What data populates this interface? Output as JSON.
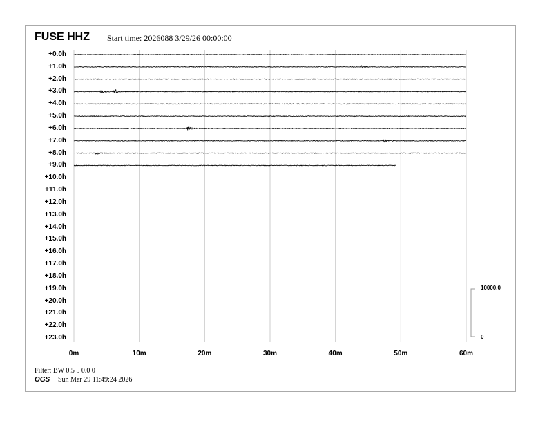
{
  "header": {
    "station": "FUSE HHZ",
    "start_time": "Start time: 2026088  3/29/26 00:00:00"
  },
  "footer": {
    "filter": "Filter: BW 0.5 5 0.0 0",
    "org": "OGS",
    "generated": "Sun Mar 29 11:49:24 2026"
  },
  "chart_data": {
    "type": "line",
    "kind": "helicorder",
    "row_labels": [
      "+0.0h",
      "+1.0h",
      "+2.0h",
      "+3.0h",
      "+4.0h",
      "+5.0h",
      "+6.0h",
      "+7.0h",
      "+8.0h",
      "+9.0h",
      "+10.0h",
      "+11.0h",
      "+12.0h",
      "+13.0h",
      "+14.0h",
      "+15.0h",
      "+16.0h",
      "+17.0h",
      "+18.0h",
      "+19.0h",
      "+20.0h",
      "+21.0h",
      "+22.0h",
      "+23.0h"
    ],
    "x_ticks": [
      "0m",
      "10m",
      "20m",
      "30m",
      "40m",
      "50m",
      "60m"
    ],
    "xlim": [
      0,
      60
    ],
    "grid": true,
    "trace_color": "#000000",
    "grid_color": "#cccccc",
    "rows_with_data": 10,
    "last_row_end_minute": 49.3,
    "events": [
      {
        "row": 1,
        "minute": 44,
        "amp": 1.5
      },
      {
        "row": 3,
        "minute": 4.2,
        "amp": 2
      },
      {
        "row": 3,
        "minute": 6.3,
        "amp": 3
      },
      {
        "row": 6,
        "minute": 17.5,
        "amp": 2.5
      },
      {
        "row": 7,
        "minute": 47.6,
        "amp": 1.5
      },
      {
        "row": 8,
        "minute": 3.5,
        "amp": 1.8
      }
    ],
    "scale": {
      "top_label": "10000.0",
      "bottom_label": "0"
    }
  }
}
